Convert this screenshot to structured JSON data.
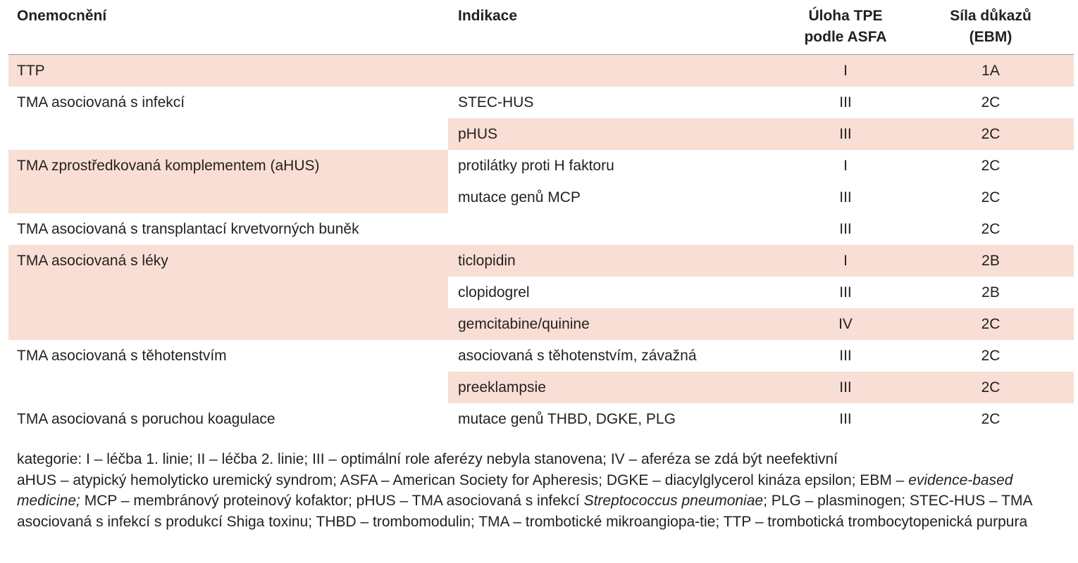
{
  "table": {
    "headers": {
      "disease": "Onemocnění",
      "indication": "Indikace",
      "tpe_role": [
        "Úloha TPE",
        "podle ASFA"
      ],
      "evidence": [
        "Síla důkazů",
        "(EBM)"
      ]
    },
    "rows": [
      {
        "disease": "TTP",
        "indication": "",
        "category": "I",
        "evidence": "1A"
      },
      {
        "disease": "TMA asociovaná s infekcí",
        "indication": "STEC-HUS",
        "category": "III",
        "evidence": "2C"
      },
      {
        "disease": "",
        "indication": "pHUS",
        "category": "III",
        "evidence": "2C"
      },
      {
        "disease": "TMA zprostředkovaná komplementem (aHUS)",
        "indication": "protilátky proti H faktoru",
        "category": "I",
        "evidence": "2C"
      },
      {
        "disease": "",
        "indication": "mutace genů MCP",
        "category": "III",
        "evidence": "2C"
      },
      {
        "disease": "TMA asociovaná s transplantací krvetvorných buněk",
        "indication": "",
        "category": "III",
        "evidence": "2C"
      },
      {
        "disease": "TMA asociovaná s léky",
        "indication": "ticlopidin",
        "category": "I",
        "evidence": "2B"
      },
      {
        "disease": "",
        "indication": "clopidogrel",
        "category": "III",
        "evidence": "2B"
      },
      {
        "disease": "",
        "indication": "gemcitabine/quinine",
        "category": "IV",
        "evidence": "2C"
      },
      {
        "disease": "TMA asociovaná s těhotenstvím",
        "indication": "asociovaná s těhotenstvím, závažná",
        "category": "III",
        "evidence": "2C"
      },
      {
        "disease": "",
        "indication": "preeklampsie",
        "category": "III",
        "evidence": "2C"
      },
      {
        "disease": "TMA asociovaná s poruchou koagulace",
        "indication": "mutace genů THBD, DGKE, PLG",
        "category": "III",
        "evidence": "2C"
      }
    ],
    "highlight_color": "#f8ded4"
  },
  "footnotes": {
    "categories": "kategorie: I – léčba 1. linie; II – léčba 2. linie; III – optimální role aferézy nebyla stanovena; IV – aferéza se zdá být neefektivní",
    "abbreviations": [
      {
        "text": "aHUS – atypický hemolyticko uremický syndrom; ASFA – American Society for Apheresis; DGKE – diacylglycerol kináza epsilon; EBM – ",
        "italic": false
      },
      {
        "text": "evidence-based medicine;",
        "italic": true
      },
      {
        "text": " MCP – membránový proteinový kofaktor; pHUS – TMA asociovaná s infekcí ",
        "italic": false
      },
      {
        "text": "Streptococcus pneumoniae",
        "italic": true
      },
      {
        "text": "; PLG – plasminogen; STEC-HUS – TMA asociovaná s infekcí s produkcí Shiga toxinu; THBD – trombomodulin; TMA – trombotické mikroangiopa-tie; TTP – trombotická trombocytopenická purpura",
        "italic": false
      }
    ]
  }
}
